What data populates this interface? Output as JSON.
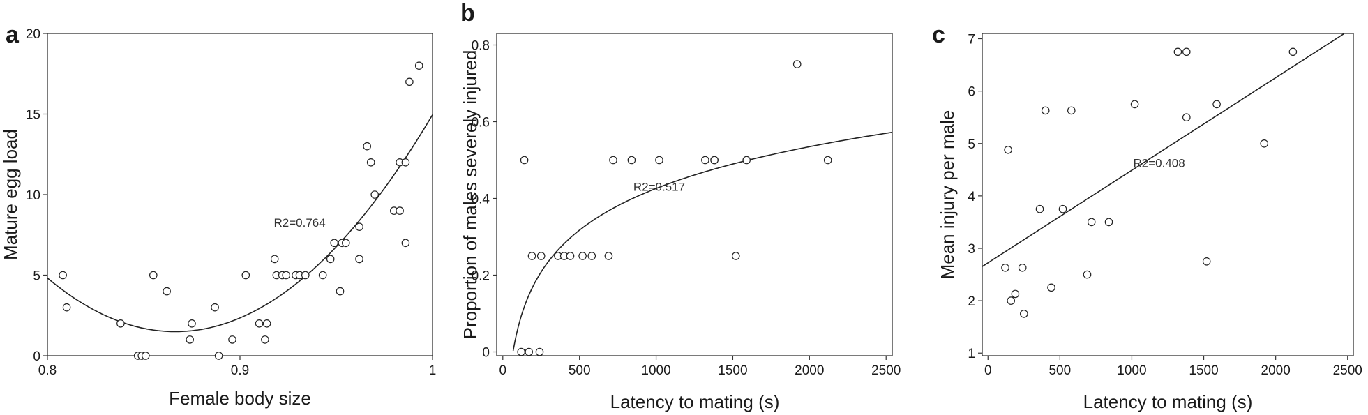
{
  "chart_data": [
    {
      "type": "scatter",
      "panel": "a",
      "xlabel": "Female body size",
      "ylabel": "Mature egg load",
      "xlim": [
        0.8,
        1.0
      ],
      "ylim": [
        0,
        20
      ],
      "xticks": [
        0.8,
        0.9,
        1.0
      ],
      "xtick_labels": [
        "0.8",
        "0.9",
        "1"
      ],
      "yticks": [
        0,
        5,
        10,
        15,
        20
      ],
      "ytick_labels": [
        "0",
        "5",
        "10",
        "15",
        "20"
      ],
      "grid": false,
      "fit": {
        "kind": "quadratic",
        "r2_label": "R2=0.764",
        "annotation_at": [
          0.931,
          8
        ]
      },
      "points": [
        [
          0.808,
          5
        ],
        [
          0.81,
          3
        ],
        [
          0.838,
          2
        ],
        [
          0.847,
          0
        ],
        [
          0.849,
          0
        ],
        [
          0.851,
          0
        ],
        [
          0.855,
          5
        ],
        [
          0.862,
          4
        ],
        [
          0.874,
          1
        ],
        [
          0.875,
          2
        ],
        [
          0.887,
          3
        ],
        [
          0.889,
          0
        ],
        [
          0.896,
          1
        ],
        [
          0.903,
          5
        ],
        [
          0.91,
          2
        ],
        [
          0.913,
          1
        ],
        [
          0.914,
          2
        ],
        [
          0.918,
          6
        ],
        [
          0.919,
          5
        ],
        [
          0.922,
          5
        ],
        [
          0.924,
          5
        ],
        [
          0.929,
          5
        ],
        [
          0.931,
          5
        ],
        [
          0.934,
          5
        ],
        [
          0.943,
          5
        ],
        [
          0.947,
          6
        ],
        [
          0.949,
          7
        ],
        [
          0.952,
          4
        ],
        [
          0.953,
          7
        ],
        [
          0.955,
          7
        ],
        [
          0.962,
          8
        ],
        [
          0.962,
          6
        ],
        [
          0.962,
          6
        ],
        [
          0.966,
          13
        ],
        [
          0.968,
          12
        ],
        [
          0.97,
          10
        ],
        [
          0.98,
          9
        ],
        [
          0.983,
          12
        ],
        [
          0.983,
          9
        ],
        [
          0.986,
          7
        ],
        [
          0.986,
          12
        ],
        [
          0.988,
          17
        ],
        [
          0.993,
          18
        ]
      ]
    },
    {
      "type": "scatter",
      "panel": "b",
      "xlabel": "Latency to mating (s)",
      "ylabel": "Proportion of males severely injured",
      "xlim": [
        -40,
        2540
      ],
      "ylim": [
        -0.01,
        0.83
      ],
      "xticks": [
        0,
        500,
        1000,
        1500,
        2000,
        2500
      ],
      "xtick_labels": [
        "0",
        "500",
        "1000",
        "1500",
        "2000",
        "2500"
      ],
      "yticks": [
        0,
        0.2,
        0.4,
        0.6,
        0.8
      ],
      "ytick_labels": [
        "0",
        "0.2",
        "0.4",
        "0.6",
        "0.8"
      ],
      "grid": false,
      "fit": {
        "kind": "logarithmic",
        "r2_label": "R2=0.517",
        "annotation_at": [
          1020,
          0.42
        ]
      },
      "points": [
        [
          120,
          0
        ],
        [
          170,
          0
        ],
        [
          240,
          0
        ],
        [
          140,
          0.5
        ],
        [
          190,
          0.25
        ],
        [
          250,
          0.25
        ],
        [
          360,
          0.25
        ],
        [
          400,
          0.25
        ],
        [
          440,
          0.25
        ],
        [
          520,
          0.25
        ],
        [
          580,
          0.25
        ],
        [
          690,
          0.25
        ],
        [
          720,
          0.5
        ],
        [
          840,
          0.5
        ],
        [
          1020,
          0.5
        ],
        [
          1320,
          0.5
        ],
        [
          1380,
          0.5
        ],
        [
          1380,
          0.5
        ],
        [
          1520,
          0.25
        ],
        [
          1590,
          0.5
        ],
        [
          1920,
          0.75
        ],
        [
          2120,
          0.5
        ]
      ]
    },
    {
      "type": "scatter",
      "panel": "c",
      "xlabel": "Latency to mating (s)",
      "ylabel": "Mean injury per male",
      "xlim": [
        -40,
        2540
      ],
      "ylim": [
        0.95,
        7.1
      ],
      "xticks": [
        0,
        500,
        1000,
        1500,
        2000,
        2500
      ],
      "xtick_labels": [
        "0",
        "500",
        "1000",
        "1500",
        "2000",
        "2500"
      ],
      "yticks": [
        1,
        2,
        3,
        4,
        5,
        6,
        7
      ],
      "ytick_labels": [
        "1",
        "2",
        "3",
        "4",
        "5",
        "6",
        "7"
      ],
      "grid": false,
      "fit": {
        "kind": "linear",
        "r2_label": "R2=0.408",
        "annotation_at": [
          1190,
          4.55
        ]
      },
      "points": [
        [
          120,
          2.63
        ],
        [
          140,
          4.88
        ],
        [
          160,
          2.0
        ],
        [
          190,
          2.13
        ],
        [
          240,
          2.63
        ],
        [
          250,
          1.75
        ],
        [
          360,
          3.75
        ],
        [
          400,
          5.63
        ],
        [
          440,
          2.25
        ],
        [
          520,
          3.75
        ],
        [
          580,
          5.63
        ],
        [
          690,
          2.5
        ],
        [
          720,
          3.5
        ],
        [
          840,
          3.5
        ],
        [
          1020,
          5.75
        ],
        [
          1320,
          6.75
        ],
        [
          1380,
          6.75
        ],
        [
          1380,
          5.5
        ],
        [
          1520,
          2.75
        ],
        [
          1590,
          5.75
        ],
        [
          1920,
          5.0
        ],
        [
          2120,
          6.75
        ]
      ]
    }
  ]
}
